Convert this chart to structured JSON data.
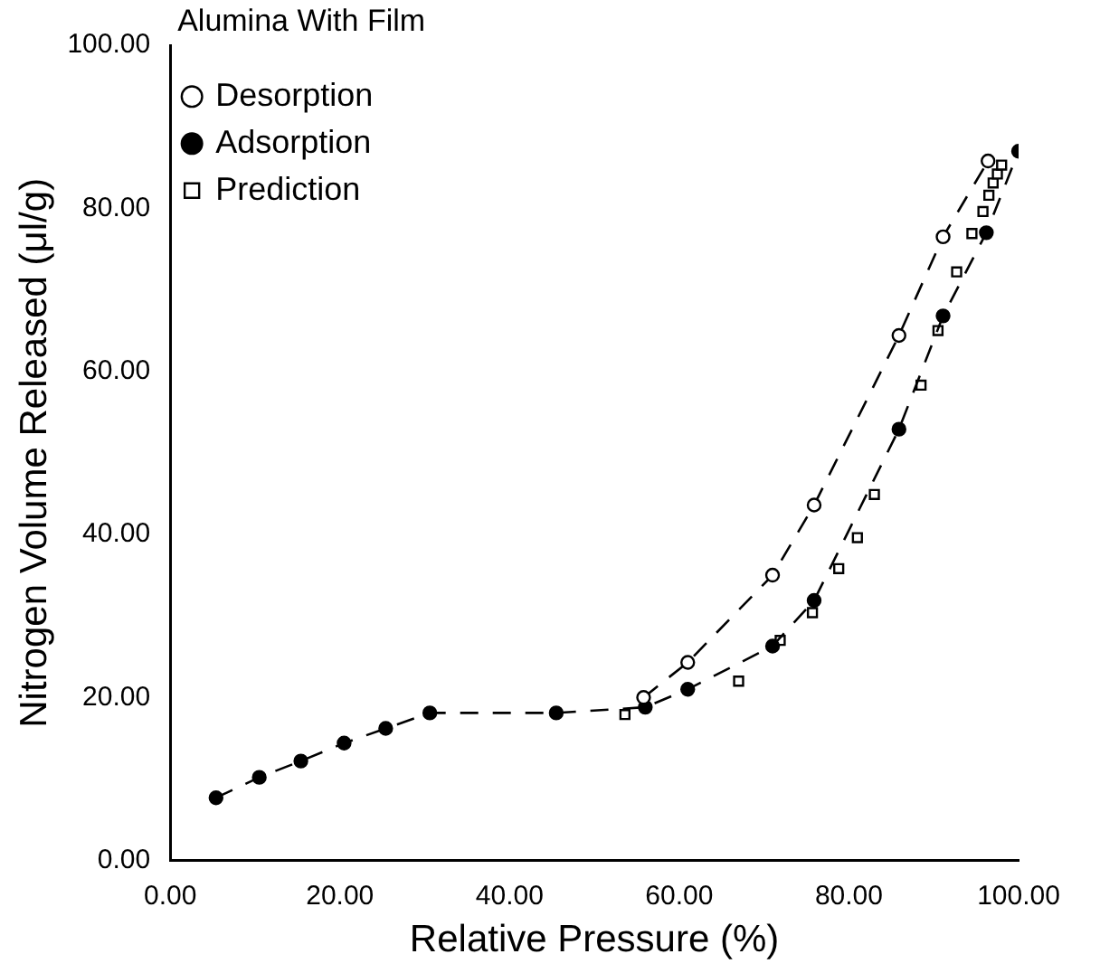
{
  "chart_data": {
    "type": "scatter",
    "xlabel": "Relative Pressure (%)",
    "ylabel": "Nitrogen Volume Released (μl/g)",
    "legend_title": "Alumina With Film",
    "legend": "top left",
    "grid": false,
    "xlim": [
      0,
      100
    ],
    "ylim": [
      0,
      100
    ],
    "xticks": [
      {
        "value": 0,
        "label": "0.00"
      },
      {
        "value": 20,
        "label": "20.00"
      },
      {
        "value": 40,
        "label": "40.00"
      },
      {
        "value": 60,
        "label": "60.00"
      },
      {
        "value": 80,
        "label": "80.00"
      },
      {
        "value": 100,
        "label": "100.00"
      }
    ],
    "yticks": [
      {
        "value": 0,
        "label": "0.00"
      },
      {
        "value": 20,
        "label": "20.00"
      },
      {
        "value": 40,
        "label": "40.00"
      },
      {
        "value": 60,
        "label": "60.00"
      },
      {
        "value": 80,
        "label": "80.00"
      },
      {
        "value": 100,
        "label": "100.00"
      }
    ],
    "series": [
      {
        "name": "Desorption",
        "type": "line",
        "line_style": "dashed",
        "marker": "circle",
        "color": "#000000",
        "x": [
          55.8,
          61,
          71,
          75.9,
          85.9,
          91.1,
          96.4
        ],
        "values": [
          20,
          24.3,
          35,
          43.6,
          64.4,
          76.5,
          85.8
        ]
      },
      {
        "name": "Adsorption",
        "type": "line",
        "line_style": "dashed",
        "marker": "circle",
        "color": "#000000",
        "x": [
          5.4,
          10.5,
          15.4,
          20.5,
          25.4,
          30.6,
          45.5,
          56,
          61,
          71,
          75.9,
          85.9,
          91.1,
          96.2,
          100
        ],
        "values": [
          7.7,
          10.2,
          12.2,
          14.4,
          16.2,
          18.1,
          18.1,
          18.8,
          21,
          26.3,
          31.9,
          52.9,
          66.8,
          77,
          87
        ]
      },
      {
        "name": "Prediction",
        "type": "scatter",
        "marker": "square",
        "color": "#000000",
        "x": [
          53.6,
          67,
          71.9,
          75.7,
          78.8,
          81,
          83,
          88.5,
          90.5,
          92.7,
          94.5,
          95.8,
          96.5,
          97,
          97.5,
          98
        ],
        "values": [
          17.9,
          22,
          27,
          30.4,
          35.8,
          39.6,
          44.9,
          58.3,
          65,
          72.2,
          76.9,
          79.6,
          81.6,
          83.1,
          84.2,
          85.3
        ]
      }
    ]
  }
}
